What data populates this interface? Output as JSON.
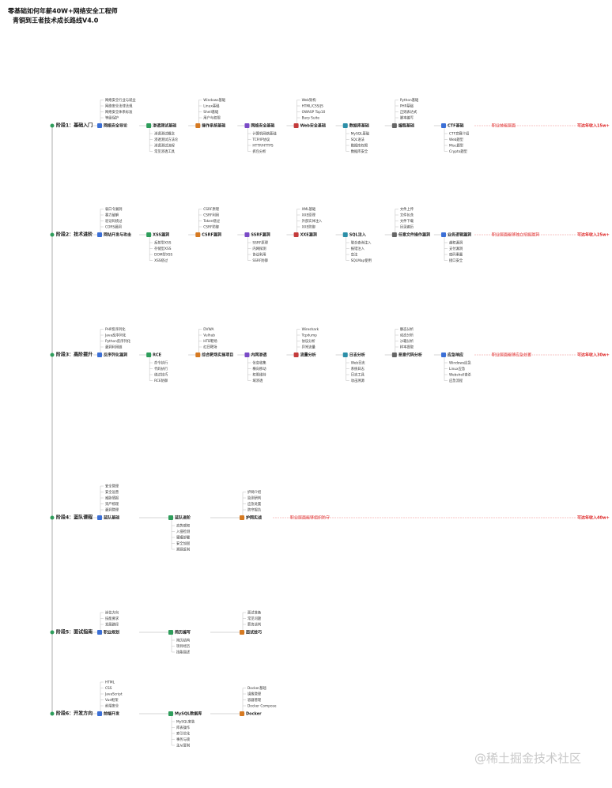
{
  "title": [
    "零基础如何年薪40W+网络安全工程师",
    "青铜到王者技术成长路线V4.0"
  ],
  "watermark": "@稀土掘金技术社区",
  "stages": [
    {
      "label": "阶段1：基础入门",
      "salary": "可达年收入15w+",
      "goal": "职业技能层面",
      "nodes": [
        {
          "label": "网络安全导论",
          "children": [
            "网络安全行业与就业",
            "网络安全法律法规",
            "网络安全体系标准",
            "等级保护"
          ]
        },
        {
          "label": "渗透测试基础",
          "children": [
            "渗透测试概念",
            "渗透测试方法论",
            "渗透测试流程",
            "常见渗透工具"
          ]
        },
        {
          "label": "操作系统基础",
          "children": [
            "Windows基础",
            "Linux基础",
            "Shell基础",
            "用户与权限"
          ]
        },
        {
          "label": "网络安全基础",
          "children": [
            "计算机网络基础",
            "TCP/IP协议",
            "HTTP/HTTPS",
            "抓包分析"
          ]
        },
        {
          "label": "Web安全基础",
          "children": [
            "Web架构",
            "HTML/CSS/JS",
            "OWASP Top10",
            "Burp Suite"
          ]
        },
        {
          "label": "数据库基础",
          "children": [
            "MySQL基础",
            "SQL语法",
            "数据库权限",
            "数据库安全"
          ]
        },
        {
          "label": "编程基础",
          "children": [
            "Python基础",
            "PHP基础",
            "正则表达式",
            "脚本编写"
          ]
        },
        {
          "label": "CTF基础",
          "children": [
            "CTF竞赛介绍",
            "Web题型",
            "Misc题型",
            "Crypto题型"
          ]
        }
      ]
    },
    {
      "label": "阶段2：技术进阶",
      "salary": "可达年收入25w+",
      "goal": "职业层面能够独立挖掘漏洞",
      "nodes": [
        {
          "label": "网站开发与攻击",
          "children": [
            "弱口令漏洞",
            "暴力破解",
            "验证码绕过",
            "CORS漏洞"
          ]
        },
        {
          "label": "XSS漏洞",
          "children": [
            "反射型XSS",
            "存储型XSS",
            "DOM型XSS",
            "XSS绕过"
          ]
        },
        {
          "label": "CSRF漏洞",
          "children": [
            "CSRF原理",
            "CSRF利用",
            "Token绕过",
            "CSRF防御"
          ]
        },
        {
          "label": "SSRF漏洞",
          "children": [
            "SSRF原理",
            "内网探测",
            "协议利用",
            "SSRF防御"
          ]
        },
        {
          "label": "XXE漏洞",
          "children": [
            "XML基础",
            "XXE原理",
            "外部实体注入",
            "XXE防御"
          ]
        },
        {
          "label": "SQL注入",
          "children": [
            "联合查询注入",
            "报错注入",
            "盲注",
            "SQLMap使用"
          ]
        },
        {
          "label": "任意文件操作漏洞",
          "children": [
            "文件上传",
            "文件包含",
            "文件下载",
            "目录遍历"
          ]
        },
        {
          "label": "业务逻辑漏洞",
          "children": [
            "越权漏洞",
            "支付漏洞",
            "密码重置",
            "接口安全"
          ]
        }
      ]
    },
    {
      "label": "阶段3：高阶提升",
      "salary": "可达年收入30w+",
      "goal": "职业层面能够应急处置",
      "nodes": [
        {
          "label": "反序列化漏洞",
          "children": [
            "PHP反序列化",
            "Java反序列化",
            "Python反序列化",
            "漏洞利用链"
          ]
        },
        {
          "label": "RCE",
          "children": [
            "命令执行",
            "代码执行",
            "绕过技巧",
            "RCE防御"
          ]
        },
        {
          "label": "综合靶场实操项目",
          "children": [
            "DVWA",
            "Vulhub",
            "HTB靶场",
            "红日靶场"
          ]
        },
        {
          "label": "内网渗透",
          "children": [
            "信息收集",
            "横向移动",
            "权限维持",
            "域渗透"
          ]
        },
        {
          "label": "流量分析",
          "children": [
            "Wireshark",
            "Tcpdump",
            "协议分析",
            "异常流量"
          ]
        },
        {
          "label": "日志分析",
          "children": [
            "Web日志",
            "系统日志",
            "日志工具",
            "攻击溯源"
          ]
        },
        {
          "label": "恶意代码分析",
          "children": [
            "静态分析",
            "动态分析",
            "沙箱分析",
            "样本提取"
          ]
        },
        {
          "label": "应急响应",
          "children": [
            "Windows应急",
            "Linux应急",
            "Webshell查杀",
            "应急流程"
          ]
        }
      ]
    },
    {
      "label": "阶段4：蓝队课程",
      "salary": "可达年收入40w+",
      "goal": "职业层面能够组织防守",
      "nodes": [
        {
          "label": "蓝队基础",
          "children": [
            "安全管理",
            "安全运营",
            "威胁情报",
            "资产梳理",
            "漏洞管理"
          ]
        },
        {
          "label": "蓝队进阶",
          "children": [
            "态势感知",
            "入侵检测",
            "蜜罐部署",
            "安全加固",
            "溯源反制"
          ]
        },
        {
          "label": "护网实战",
          "children": [
            "护网介绍",
            "监测研判",
            "应急处置",
            "防守报告"
          ]
        }
      ]
    },
    {
      "label": "阶段5：面试指南",
      "salary": "",
      "goal": "",
      "nodes": [
        {
          "label": "职业规划",
          "children": [
            "岗位方向",
            "技能要求",
            "发展路径"
          ]
        },
        {
          "label": "简历编写",
          "children": [
            "简历结构",
            "项目经历",
            "技能描述"
          ]
        },
        {
          "label": "面试技巧",
          "children": [
            "面试准备",
            "常见问题",
            "薪资谈判"
          ]
        }
      ]
    },
    {
      "label": "阶段6：开发方向",
      "salary": "",
      "goal": "",
      "nodes": [
        {
          "label": "前端开发",
          "children": [
            "HTML",
            "CSS",
            "JavaScript",
            "Vue框架",
            "前端安全"
          ]
        },
        {
          "label": "MySQL数据库",
          "children": [
            "MySQL安装",
            "库表操作",
            "索引优化",
            "事务与锁",
            "主从复制"
          ]
        },
        {
          "label": "Docker",
          "children": [
            "Docker基础",
            "镜像管理",
            "容器管理",
            "Docker Compose"
          ]
        }
      ]
    }
  ]
}
